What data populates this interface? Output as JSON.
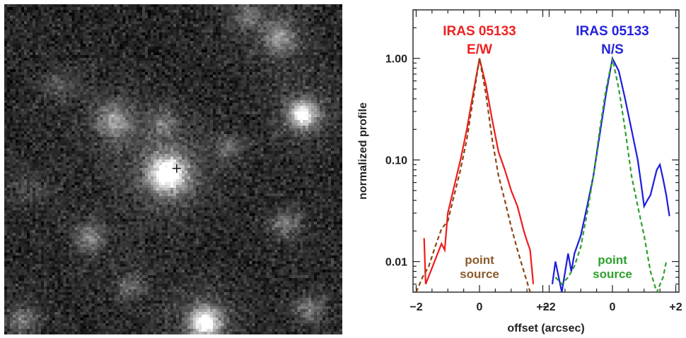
{
  "chart_data": {
    "type": "line",
    "image_panel": {
      "description_visible": false,
      "marker": "cross",
      "sources": [
        {
          "x": 0.48,
          "y": 0.51,
          "brightness": 1.0,
          "sigma": 0.055
        },
        {
          "x": 0.88,
          "y": 0.33,
          "brightness": 0.85,
          "sigma": 0.04
        },
        {
          "x": 0.59,
          "y": 0.96,
          "brightness": 0.9,
          "sigma": 0.045
        },
        {
          "x": 0.32,
          "y": 0.35,
          "brightness": 0.45,
          "sigma": 0.05
        },
        {
          "x": 0.81,
          "y": 0.1,
          "brightness": 0.4,
          "sigma": 0.05
        },
        {
          "x": 0.25,
          "y": 0.7,
          "brightness": 0.35,
          "sigma": 0.04
        },
        {
          "x": 0.83,
          "y": 0.66,
          "brightness": 0.3,
          "sigma": 0.04
        },
        {
          "x": 0.47,
          "y": 0.36,
          "brightness": 0.25,
          "sigma": 0.04
        },
        {
          "x": 0.66,
          "y": 0.43,
          "brightness": 0.25,
          "sigma": 0.035
        },
        {
          "x": 0.37,
          "y": 0.85,
          "brightness": 0.25,
          "sigma": 0.04
        },
        {
          "x": 0.05,
          "y": 0.95,
          "brightness": 0.3,
          "sigma": 0.04
        },
        {
          "x": 0.9,
          "y": 0.92,
          "brightness": 0.3,
          "sigma": 0.04
        },
        {
          "x": 0.16,
          "y": 0.24,
          "brightness": 0.2,
          "sigma": 0.04
        },
        {
          "x": 0.72,
          "y": 0.03,
          "brightness": 0.25,
          "sigma": 0.04
        },
        {
          "x": 0.07,
          "y": 0.55,
          "brightness": 0.15,
          "sigma": 0.05
        }
      ]
    },
    "ylabel": "normalized profile",
    "xlabel": "offset (arcsec)",
    "ylim": [
      0.005,
      3.0
    ],
    "yscale": "log",
    "ytick_labels": [
      "1.00",
      "0.10",
      "0.01"
    ],
    "ytick_values": [
      1.0,
      0.1,
      0.01
    ],
    "panels": [
      {
        "title_line1": "IRAS 05133",
        "title_line2": "E/W",
        "title_color": "#ee2222",
        "xlim": [
          -2.1,
          2.1
        ],
        "xtick_labels": [
          "−2",
          "0",
          "+2"
        ],
        "xtick_values": [
          -2,
          0,
          2
        ],
        "annotation_line1": "point",
        "annotation_line2": "source",
        "annotation_color": "#8b5a2b",
        "series": [
          {
            "style": "solid",
            "color": "#ee1c1c",
            "x": [
              -1.75,
              -1.7,
              -1.2,
              -1.1,
              -1.0,
              -0.8,
              -0.6,
              -0.4,
              -0.2,
              0.0,
              0.2,
              0.4,
              0.6,
              0.8,
              1.0,
              1.2,
              1.4,
              1.5,
              1.6,
              1.7
            ],
            "y": [
              0.017,
              0.006,
              0.015,
              0.013,
              0.03,
              0.055,
              0.1,
              0.2,
              0.45,
              1.0,
              0.55,
              0.25,
              0.12,
              0.08,
              0.05,
              0.035,
              0.02,
              0.016,
              0.013,
              0.006
            ]
          },
          {
            "style": "dashed",
            "color": "#8b4513",
            "x": [
              -2.0,
              -1.8,
              -1.6,
              -1.4,
              -1.2,
              -1.0,
              -0.8,
              -0.6,
              -0.4,
              -0.2,
              0.0,
              0.2,
              0.4,
              0.6,
              0.8,
              1.0,
              1.2,
              1.4,
              1.6
            ],
            "y": [
              0.005,
              0.007,
              0.009,
              0.014,
              0.021,
              0.025,
              0.045,
              0.08,
              0.16,
              0.4,
              1.0,
              0.45,
              0.16,
              0.07,
              0.04,
              0.022,
              0.013,
              0.008,
              0.005
            ]
          }
        ]
      },
      {
        "title_line1": "IRAS 05133",
        "title_line2": "N/S",
        "title_color": "#2222dd",
        "xlim": [
          -2.1,
          2.1
        ],
        "xtick_labels": [
          "−2",
          "0",
          "+2"
        ],
        "xtick_values": [
          -2,
          0,
          2
        ],
        "annotation_line1": "point",
        "annotation_line2": "source",
        "annotation_color": "#2ca02c",
        "series": [
          {
            "style": "solid",
            "color": "#1c1cdd",
            "x": [
              -1.9,
              -1.8,
              -1.6,
              -1.4,
              -1.3,
              -1.2,
              -1.0,
              -0.8,
              -0.6,
              -0.4,
              -0.2,
              0.0,
              0.2,
              0.4,
              0.6,
              0.8,
              0.9,
              1.0,
              1.1,
              1.2,
              1.3,
              1.4,
              1.5,
              1.6,
              1.7,
              1.8
            ],
            "y": [
              0.006,
              0.01,
              0.005,
              0.012,
              0.008,
              0.012,
              0.018,
              0.035,
              0.07,
              0.18,
              0.45,
              1.0,
              0.75,
              0.4,
              0.2,
              0.1,
              0.06,
              0.035,
              0.04,
              0.045,
              0.06,
              0.08,
              0.09,
              0.065,
              0.045,
              0.028
            ]
          },
          {
            "style": "dashed",
            "color": "#2ca02c",
            "x": [
              -1.8,
              -1.6,
              -1.4,
              -1.2,
              -1.0,
              -0.8,
              -0.6,
              -0.4,
              -0.2,
              0.0,
              0.2,
              0.4,
              0.6,
              0.8,
              1.0,
              1.2,
              1.4,
              1.6,
              1.7
            ],
            "y": [
              0.007,
              0.006,
              0.007,
              0.009,
              0.014,
              0.03,
              0.07,
              0.2,
              0.5,
              1.0,
              0.5,
              0.2,
              0.07,
              0.035,
              0.018,
              0.008,
              0.005,
              0.007,
              0.01
            ]
          }
        ]
      }
    ]
  }
}
